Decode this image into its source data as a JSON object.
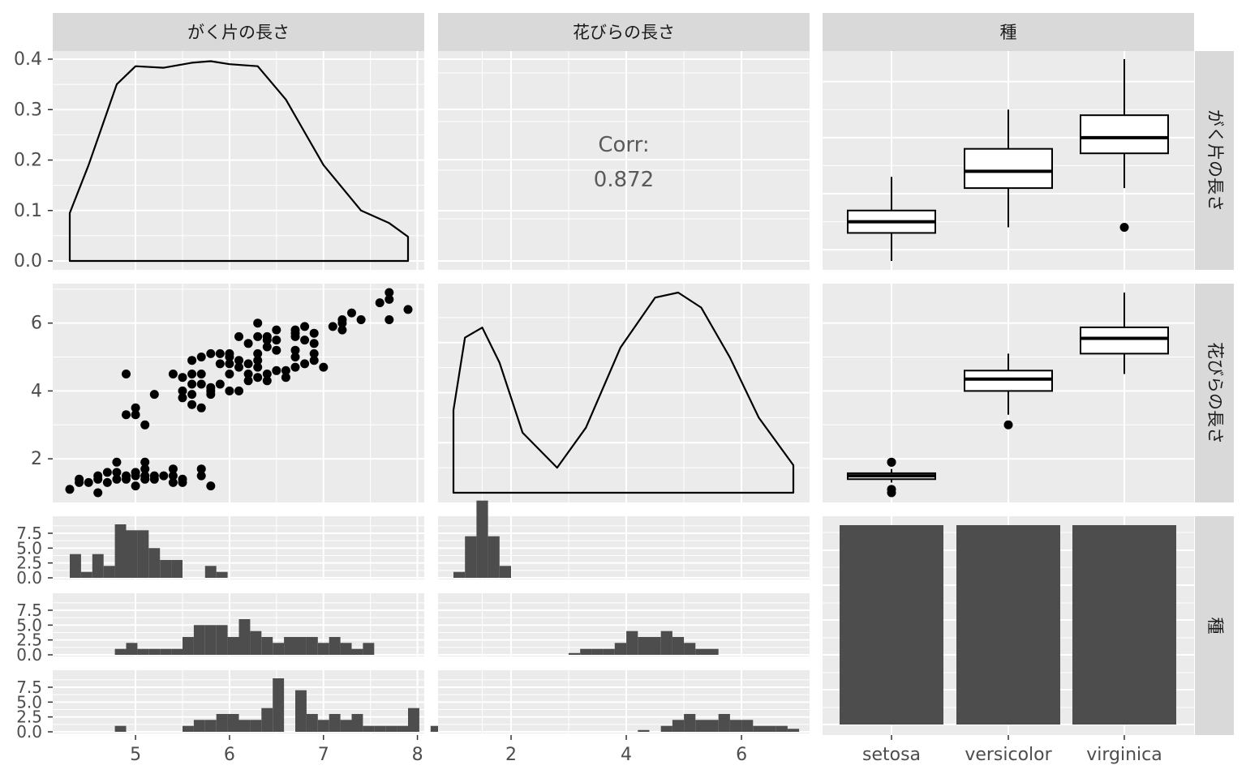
{
  "strips": {
    "top": [
      "がく片の長さ",
      "花びらの長さ",
      "種"
    ],
    "right": [
      "がく片の長さ",
      "花びらの長さ",
      "種"
    ]
  },
  "axes": {
    "density_y_ticks": [
      "0.0",
      "0.1",
      "0.2",
      "0.3",
      "0.4"
    ],
    "petal_y_ticks": [
      "2",
      "4",
      "6"
    ],
    "hist_y_ticks": [
      "0.0",
      "2.5",
      "5.0",
      "7.5"
    ],
    "sepal_x_ticks": [
      "5",
      "6",
      "7",
      "8"
    ],
    "petal_x_ticks": [
      "2",
      "4",
      "6"
    ],
    "species_x_ticks": [
      "setosa",
      "versicolor",
      "virginica"
    ]
  },
  "correlation": {
    "label": "Corr:",
    "value": "0.872"
  },
  "colors": {
    "panel_bg": "#ebebeb",
    "strip_bg": "#d9d9d9",
    "grid": "#ffffff",
    "ink": "#000000",
    "bar": "#4d4d4d",
    "corr_text": "#5a5a5a"
  },
  "chart_data": {
    "type": "pairs",
    "variables": [
      "がく片の長さ",
      "花びらの長さ",
      "種"
    ],
    "species": [
      "setosa",
      "versicolor",
      "virginica"
    ],
    "sepal_density": {
      "x": [
        4.3,
        4.5,
        4.8,
        5.0,
        5.3,
        5.6,
        5.8,
        6.0,
        6.3,
        6.6,
        7.0,
        7.4,
        7.7,
        7.9
      ],
      "y": [
        0.095,
        0.19,
        0.35,
        0.386,
        0.383,
        0.393,
        0.396,
        0.39,
        0.386,
        0.32,
        0.19,
        0.1,
        0.075,
        0.048
      ]
    },
    "petal_density": {
      "x": [
        1.0,
        1.2,
        1.5,
        1.8,
        2.2,
        2.8,
        3.3,
        3.9,
        4.5,
        4.9,
        5.3,
        5.8,
        6.3,
        6.9
      ],
      "y": [
        0.165,
        0.31,
        0.33,
        0.26,
        0.12,
        0.05,
        0.13,
        0.29,
        0.39,
        0.4,
        0.37,
        0.27,
        0.15,
        0.055
      ]
    },
    "scatter": [
      [
        4.3,
        1.1
      ],
      [
        4.4,
        1.4
      ],
      [
        4.4,
        1.3
      ],
      [
        4.5,
        1.3
      ],
      [
        4.6,
        1.4
      ],
      [
        4.6,
        1.0
      ],
      [
        4.6,
        1.5
      ],
      [
        4.7,
        1.3
      ],
      [
        4.7,
        1.6
      ],
      [
        4.8,
        1.6
      ],
      [
        4.8,
        1.9
      ],
      [
        4.8,
        1.4
      ],
      [
        4.9,
        1.5
      ],
      [
        4.9,
        1.4
      ],
      [
        4.9,
        4.5
      ],
      [
        4.9,
        3.3
      ],
      [
        5.0,
        1.6
      ],
      [
        5.0,
        1.2
      ],
      [
        5.0,
        1.5
      ],
      [
        5.0,
        3.5
      ],
      [
        5.0,
        3.3
      ],
      [
        5.1,
        1.5
      ],
      [
        5.1,
        1.4
      ],
      [
        5.1,
        1.9
      ],
      [
        5.1,
        1.7
      ],
      [
        5.1,
        3.0
      ],
      [
        5.2,
        1.5
      ],
      [
        5.2,
        1.4
      ],
      [
        5.2,
        3.9
      ],
      [
        5.3,
        1.5
      ],
      [
        5.4,
        1.7
      ],
      [
        5.4,
        1.3
      ],
      [
        5.4,
        1.5
      ],
      [
        5.4,
        4.5
      ],
      [
        5.5,
        1.3
      ],
      [
        5.5,
        1.4
      ],
      [
        5.5,
        4.0
      ],
      [
        5.5,
        3.8
      ],
      [
        5.5,
        4.4
      ],
      [
        5.6,
        3.6
      ],
      [
        5.6,
        3.9
      ],
      [
        5.6,
        4.5
      ],
      [
        5.6,
        4.9
      ],
      [
        5.6,
        4.2
      ],
      [
        5.7,
        1.7
      ],
      [
        5.7,
        1.5
      ],
      [
        5.7,
        3.5
      ],
      [
        5.7,
        4.2
      ],
      [
        5.7,
        4.5
      ],
      [
        5.7,
        5.0
      ],
      [
        5.8,
        1.2
      ],
      [
        5.8,
        3.9
      ],
      [
        5.8,
        4.0
      ],
      [
        5.8,
        4.1
      ],
      [
        5.8,
        5.1
      ],
      [
        5.9,
        4.2
      ],
      [
        5.9,
        4.8
      ],
      [
        5.9,
        5.1
      ],
      [
        6.0,
        4.0
      ],
      [
        6.0,
        4.5
      ],
      [
        6.0,
        5.0
      ],
      [
        6.0,
        4.8
      ],
      [
        6.0,
        5.1
      ],
      [
        6.1,
        4.7
      ],
      [
        6.1,
        4.0
      ],
      [
        6.1,
        5.6
      ],
      [
        6.1,
        4.9
      ],
      [
        6.2,
        4.5
      ],
      [
        6.2,
        4.3
      ],
      [
        6.2,
        5.4
      ],
      [
        6.2,
        4.8
      ],
      [
        6.3,
        4.7
      ],
      [
        6.3,
        4.4
      ],
      [
        6.3,
        6.0
      ],
      [
        6.3,
        5.6
      ],
      [
        6.3,
        4.9
      ],
      [
        6.3,
        5.1
      ],
      [
        6.4,
        4.5
      ],
      [
        6.4,
        5.3
      ],
      [
        6.4,
        5.5
      ],
      [
        6.4,
        5.6
      ],
      [
        6.4,
        4.3
      ],
      [
        6.5,
        4.6
      ],
      [
        6.5,
        5.8
      ],
      [
        6.5,
        5.2
      ],
      [
        6.5,
        5.5
      ],
      [
        6.6,
        4.6
      ],
      [
        6.6,
        4.4
      ],
      [
        6.7,
        4.7
      ],
      [
        6.7,
        5.6
      ],
      [
        6.7,
        5.0
      ],
      [
        6.7,
        5.8
      ],
      [
        6.7,
        5.2
      ],
      [
        6.7,
        5.7
      ],
      [
        6.8,
        4.8
      ],
      [
        6.8,
        5.5
      ],
      [
        6.8,
        5.9
      ],
      [
        6.9,
        4.9
      ],
      [
        6.9,
        5.4
      ],
      [
        6.9,
        5.1
      ],
      [
        6.9,
        5.7
      ],
      [
        7.0,
        4.7
      ],
      [
        7.1,
        5.9
      ],
      [
        7.2,
        6.0
      ],
      [
        7.2,
        5.8
      ],
      [
        7.2,
        6.1
      ],
      [
        7.3,
        6.3
      ],
      [
        7.4,
        6.1
      ],
      [
        7.6,
        6.6
      ],
      [
        7.7,
        6.7
      ],
      [
        7.7,
        6.9
      ],
      [
        7.7,
        6.1
      ],
      [
        7.9,
        6.4
      ]
    ],
    "boxplots": {
      "sepal": [
        {
          "species": "setosa",
          "lower": 4.3,
          "q1": 4.8,
          "median": 5.0,
          "q3": 5.2,
          "upper": 5.8,
          "outliers": []
        },
        {
          "species": "versicolor",
          "lower": 4.9,
          "q1": 5.6,
          "median": 5.9,
          "q3": 6.3,
          "upper": 7.0,
          "outliers": []
        },
        {
          "species": "virginica",
          "lower": 5.6,
          "q1": 6.22,
          "median": 6.5,
          "q3": 6.9,
          "upper": 7.9,
          "outliers": [
            4.9
          ]
        }
      ],
      "petal": [
        {
          "species": "setosa",
          "lower": 1.3,
          "q1": 1.4,
          "median": 1.5,
          "q3": 1.575,
          "upper": 1.7,
          "outliers": [
            1.0,
            1.1,
            1.9,
            1.9
          ]
        },
        {
          "species": "versicolor",
          "lower": 3.3,
          "q1": 4.0,
          "median": 4.35,
          "q3": 4.6,
          "upper": 5.1,
          "outliers": [
            3.0
          ]
        },
        {
          "species": "virginica",
          "lower": 4.5,
          "q1": 5.1,
          "median": 5.55,
          "q3": 5.875,
          "upper": 6.9,
          "outliers": []
        }
      ]
    },
    "species_counts": [
      50,
      50,
      50
    ],
    "sepal_hist_bins": {
      "start": 4.3,
      "width": 0.12,
      "setosa": [
        4,
        1,
        4,
        2,
        9,
        8,
        8,
        5,
        3,
        3,
        0,
        0,
        2,
        1,
        0,
        0,
        0,
        0,
        0,
        0,
        0,
        0,
        0,
        0,
        0,
        0,
        0,
        0,
        0,
        0,
        0,
        0,
        0
      ],
      "versicolor": [
        0,
        0,
        0,
        0,
        1,
        2,
        1,
        1,
        1,
        1,
        3,
        5,
        5,
        5,
        3,
        6,
        4,
        3,
        2,
        3,
        3,
        3,
        2,
        3,
        2,
        1,
        2,
        0,
        0,
        0,
        0,
        0,
        0
      ],
      "virginica": [
        0,
        0,
        0,
        0,
        1,
        0,
        0,
        0,
        0,
        0,
        1,
        2,
        2,
        3,
        3,
        2,
        2,
        4,
        9,
        0,
        7,
        3,
        2,
        3,
        2,
        3,
        1,
        1,
        1,
        1,
        4,
        0,
        1
      ]
    },
    "petal_hist_bins": {
      "start": 1.0,
      "width": 0.2,
      "setosa": [
        1,
        7,
        13,
        7,
        2,
        0,
        0,
        0,
        0,
        0,
        0,
        0,
        0,
        0,
        0,
        0,
        0,
        0,
        0,
        0,
        0,
        0,
        0,
        0,
        0,
        0,
        0,
        0,
        0,
        0
      ],
      "versicolor": [
        0,
        0,
        0,
        0,
        0,
        0,
        0,
        0,
        0,
        0,
        0.3,
        1,
        1,
        1,
        2,
        4,
        3,
        3,
        4,
        3,
        2,
        1,
        1,
        0,
        0,
        0,
        0,
        0,
        0,
        0
      ],
      "virginica": [
        0,
        0,
        0,
        0,
        0,
        0,
        0,
        0,
        0,
        0,
        0,
        0,
        0,
        0,
        0,
        0,
        0.3,
        0,
        1,
        2,
        3,
        2,
        2,
        3,
        2,
        2,
        1,
        1,
        1,
        0.5
      ]
    },
    "ranges": {
      "sepal": [
        4.3,
        7.9
      ],
      "petal": [
        1.0,
        6.9
      ],
      "density_y": [
        0,
        0.4
      ],
      "hist_y": [
        0,
        9
      ]
    }
  }
}
